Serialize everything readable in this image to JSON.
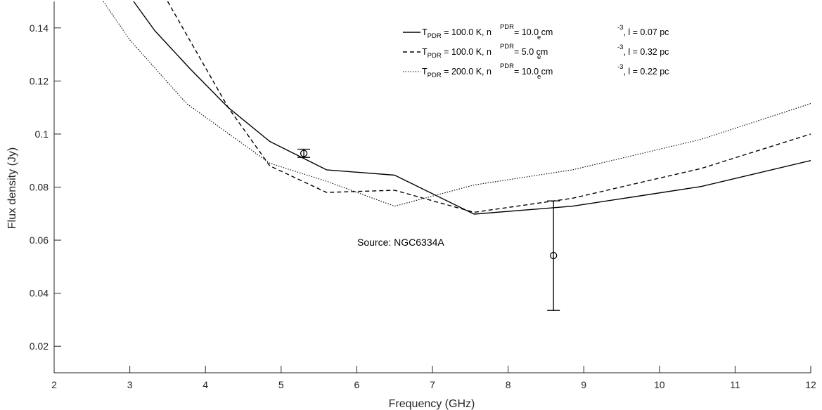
{
  "chart_data": {
    "type": "line",
    "xlabel": "Frequency (GHz)",
    "ylabel": "Flux density (Jy)",
    "xlim": [
      2,
      12
    ],
    "ylim": [
      0.01,
      0.15
    ],
    "xticks": [
      2,
      3,
      4,
      5,
      6,
      7,
      8,
      9,
      10,
      11,
      12
    ],
    "yticks": [
      0.02,
      0.04,
      0.06,
      0.08,
      0.1,
      0.12,
      0.14
    ],
    "ytick_labels": [
      "0.02",
      "0.04",
      "0.06",
      "0.08",
      "0.1",
      "0.12",
      "0.14"
    ],
    "grid": false,
    "legend_position": "top-right",
    "annotation": "Source: NGC6334A",
    "series": [
      {
        "style": "solid",
        "legend": {
          "T": "T",
          "T_sub": "PDR",
          "mid": "= 100.0 K, n",
          "n_sup": "PDR",
          "n_sub": "e",
          "cm": "= 10.0 cm",
          "exp": "-3",
          "tail": ", l =  0.07 pc"
        },
        "x": [
          3.05,
          3.33,
          3.8,
          4.3,
          4.85,
          5.6,
          6.5,
          7.55,
          8.85,
          10.55,
          12.0
        ],
        "y": [
          0.15,
          0.139,
          0.1245,
          0.11,
          0.0972,
          0.0865,
          0.0845,
          0.0698,
          0.0728,
          0.0802,
          0.09
        ]
      },
      {
        "style": "dashed",
        "legend": {
          "T": "T",
          "T_sub": "PDR",
          "mid": "= 100.0 K, n",
          "n_sup": "PDR",
          "n_sub": "e",
          "cm": "=  5.0 cm",
          "exp": "-3",
          "tail": ", l =  0.32 pc"
        },
        "x": [
          3.5,
          3.8,
          4.3,
          4.85,
          5.6,
          6.5,
          7.55,
          8.85,
          10.55,
          12.0
        ],
        "y": [
          0.15,
          0.135,
          0.11,
          0.088,
          0.078,
          0.0788,
          0.0705,
          0.0758,
          0.087,
          0.1
        ]
      },
      {
        "style": "dotted",
        "legend": {
          "T": "T",
          "T_sub": "PDR",
          "mid": "= 200.0 K, n",
          "n_sup": "PDR",
          "n_sub": "e",
          "cm": "= 10.0 cm",
          "exp": "-3",
          "tail": ", l =  0.22 pc"
        },
        "x": [
          2.65,
          3.0,
          3.75,
          4.85,
          5.6,
          6.5,
          7.55,
          8.85,
          10.55,
          12.0
        ],
        "y": [
          0.15,
          0.1355,
          0.1115,
          0.089,
          0.0822,
          0.0728,
          0.0808,
          0.0865,
          0.098,
          0.1115
        ]
      }
    ],
    "measurements": [
      {
        "x": 5.3,
        "y": 0.0927,
        "err_low": 0.0912,
        "err_high": 0.0943
      },
      {
        "x": 8.6,
        "y": 0.0542,
        "err_low": 0.0335,
        "err_high": 0.0748
      }
    ]
  }
}
